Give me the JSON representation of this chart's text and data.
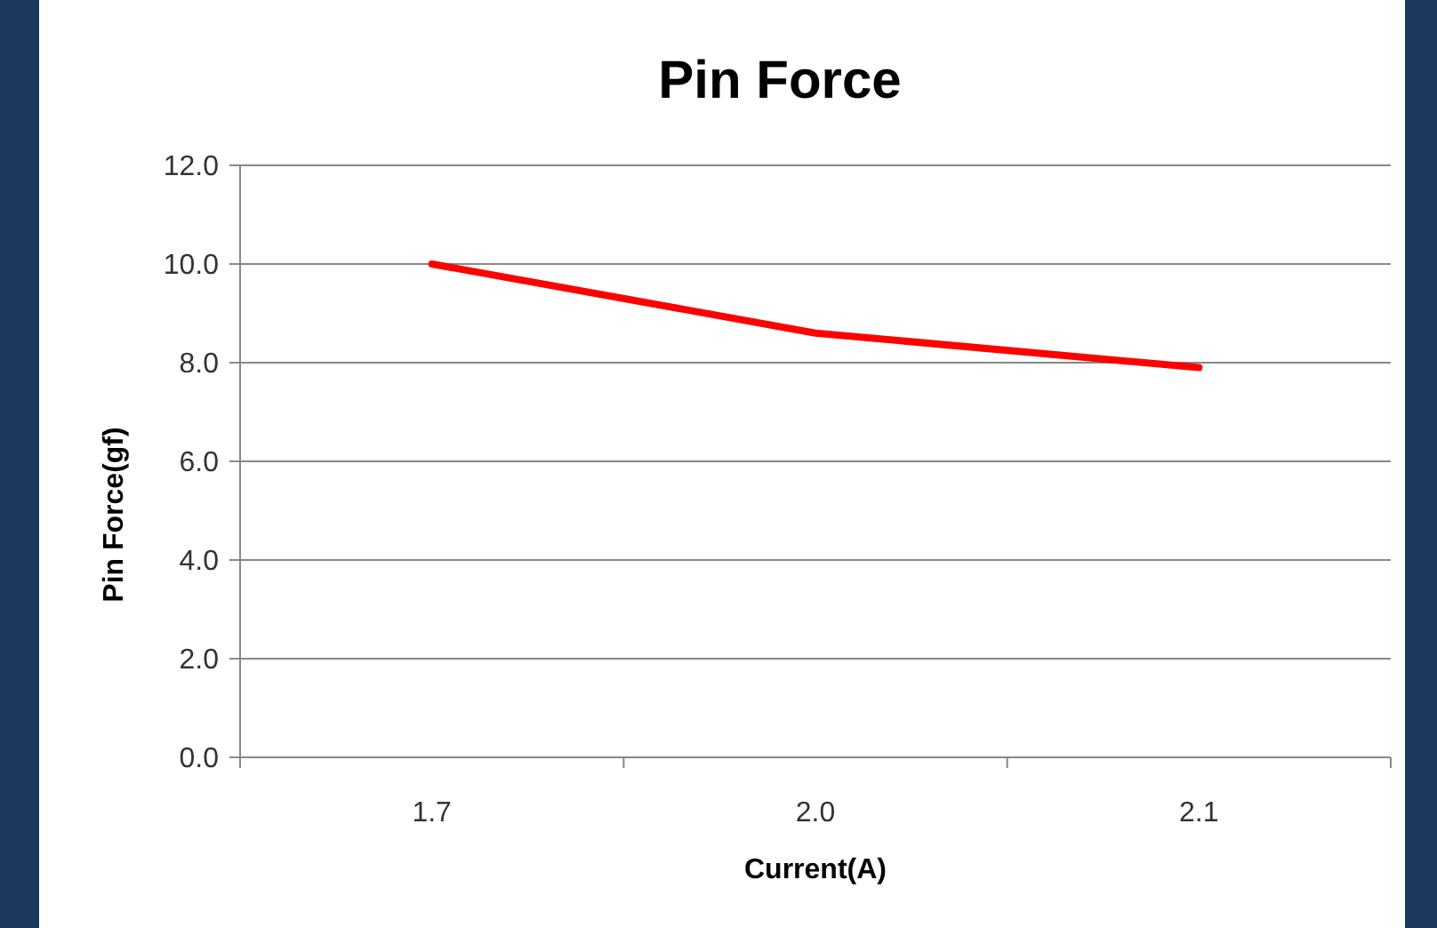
{
  "chart_data": {
    "type": "line",
    "title": "Pin Force",
    "xlabel": "Current(A)",
    "ylabel": "Pin Force(gf)",
    "categories": [
      "1.7",
      "2.0",
      "2.1"
    ],
    "series": [
      {
        "color": "#ff0000",
        "values": [
          10.0,
          8.6,
          7.9
        ]
      }
    ],
    "ylim": [
      0,
      12
    ],
    "yticks": [
      {
        "value": 0,
        "label": "0.0"
      },
      {
        "value": 2,
        "label": "2.0"
      },
      {
        "value": 4,
        "label": "4.0"
      },
      {
        "value": 6,
        "label": "6.0"
      },
      {
        "value": 8,
        "label": "8.0"
      },
      {
        "value": 10,
        "label": "10.0"
      },
      {
        "value": 12,
        "label": "12.0"
      }
    ],
    "grid": "y",
    "marker": "none",
    "line_style": "solid"
  }
}
